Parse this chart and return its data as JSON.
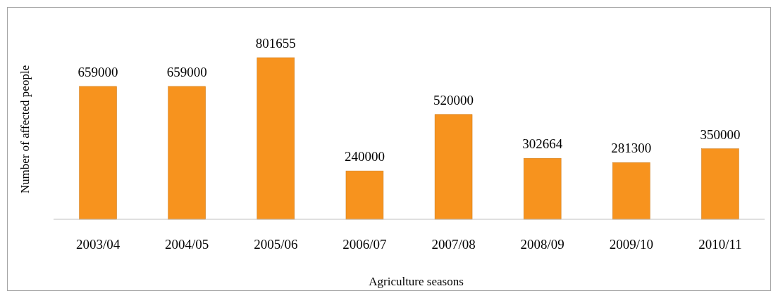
{
  "chart_data": {
    "type": "bar",
    "xlabel": "Agriculture seasons",
    "ylabel": "Number of affected people",
    "categories": [
      "2003/04",
      "2004/05",
      "2005/06",
      "2006/07",
      "2007/08",
      "2008/09",
      "2009/10",
      "2010/11"
    ],
    "values": [
      659000,
      659000,
      801655,
      240000,
      520000,
      302664,
      281300,
      350000
    ],
    "color": "#f7931e",
    "data_labels": true
  }
}
